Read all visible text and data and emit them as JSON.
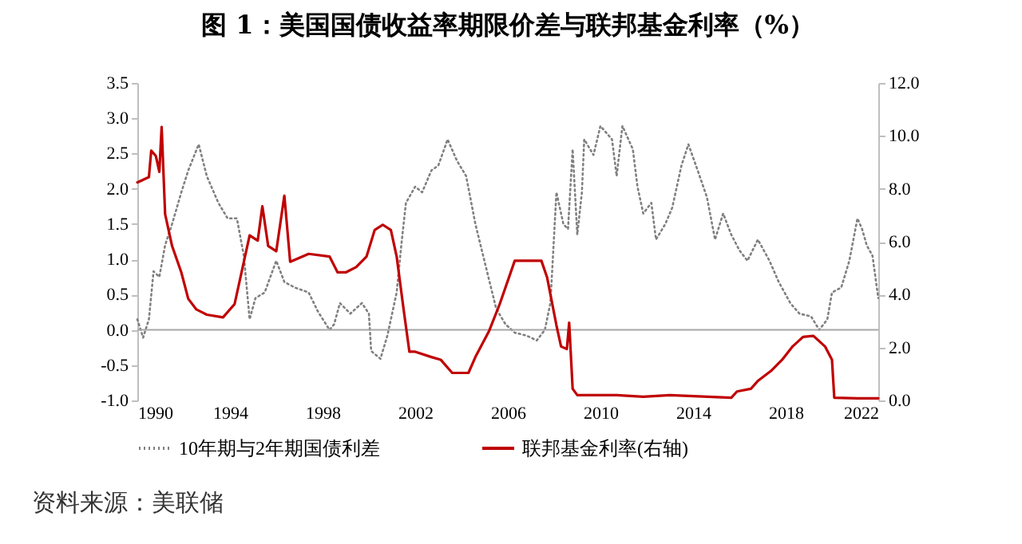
{
  "chart_data": {
    "type": "line",
    "title": "图 1：美国国债收益率期限价差与联邦基金利率（%）",
    "annotations": [
      "资料来源：美联储"
    ],
    "xlim": [
      1990,
      2022
    ],
    "xticks": [
      1990,
      1994,
      1998,
      2002,
      2006,
      2010,
      2014,
      2018,
      2022
    ],
    "ylim": [
      -1.0,
      3.5
    ],
    "yticks": [
      {
        "value": -1,
        "label": "-1.0"
      },
      {
        "value": -0.5,
        "label": "-0.5"
      },
      {
        "value": 0,
        "label": "0.0"
      },
      {
        "value": 0.5,
        "label": "0.5"
      },
      {
        "value": 1,
        "label": "1.0"
      },
      {
        "value": 1.5,
        "label": "1.5"
      },
      {
        "value": 2,
        "label": "2.0"
      },
      {
        "value": 2.5,
        "label": "2.5"
      },
      {
        "value": 3,
        "label": "3.0"
      },
      {
        "value": 3.5,
        "label": "3.5"
      }
    ],
    "y2lim": [
      0,
      12
    ],
    "y2ticks": [
      {
        "value": 0,
        "label": "0.0"
      },
      {
        "value": 2,
        "label": "2.0"
      },
      {
        "value": 4,
        "label": "4.0"
      },
      {
        "value": 6,
        "label": "6.0"
      },
      {
        "value": 8,
        "label": "8.0"
      },
      {
        "value": 10,
        "label": "10.0"
      },
      {
        "value": 12,
        "label": "12.0"
      }
    ],
    "legend": "bottom",
    "ref_lines": [
      {
        "axis": "y",
        "value": 0,
        "color": "#a6a6a6"
      }
    ],
    "series": [
      {
        "name": "10年期与2年期国债利差",
        "color": "#808080",
        "line_style": "dotted",
        "x": [
          1990.0,
          1990.25,
          1990.5,
          1990.7,
          1990.95,
          1991.2,
          1991.5,
          1991.9,
          1992.2,
          1992.65,
          1993.0,
          1993.5,
          1993.9,
          1994.3,
          1994.6,
          1994.85,
          1995.1,
          1995.5,
          1996.0,
          1996.35,
          1996.8,
          1997.4,
          1997.8,
          1998.3,
          1998.5,
          1998.75,
          1999.2,
          1999.7,
          2000.0,
          2000.1,
          2000.5,
          2000.8,
          2001.2,
          2001.4,
          2001.6,
          2002.0,
          2002.3,
          2002.7,
          2003.0,
          2003.4,
          2003.8,
          2004.2,
          2004.6,
          2005.1,
          2005.5,
          2005.9,
          2006.3,
          2006.8,
          2007.25,
          2007.6,
          2007.84,
          2008.1,
          2008.4,
          2008.6,
          2008.8,
          2009.0,
          2009.2,
          2009.3,
          2009.7,
          2010.0,
          2010.5,
          2010.7,
          2010.95,
          2011.4,
          2011.6,
          2011.85,
          2012.2,
          2012.4,
          2012.8,
          2013.1,
          2013.5,
          2013.8,
          2014.2,
          2014.6,
          2014.95,
          2015.3,
          2015.65,
          2016.0,
          2016.35,
          2016.8,
          2017.3,
          2017.7,
          2018.2,
          2018.6,
          2019.1,
          2019.45,
          2019.8,
          2020.0,
          2020.4,
          2020.75,
          2021.1,
          2021.3,
          2021.5,
          2021.75,
          2022.0
        ],
        "values": [
          0.15,
          -0.11,
          0.15,
          0.83,
          0.75,
          1.2,
          1.5,
          1.95,
          2.26,
          2.63,
          2.18,
          1.8,
          1.58,
          1.58,
          1.05,
          0.15,
          0.45,
          0.53,
          0.98,
          0.68,
          0.6,
          0.53,
          0.26,
          0.0,
          0.08,
          0.38,
          0.23,
          0.38,
          0.23,
          -0.3,
          -0.41,
          -0.08,
          0.53,
          1.2,
          1.8,
          2.03,
          1.95,
          2.26,
          2.33,
          2.7,
          2.4,
          2.18,
          1.5,
          0.83,
          0.3,
          0.08,
          -0.04,
          -0.08,
          -0.15,
          0.0,
          0.38,
          1.95,
          1.5,
          1.43,
          2.56,
          1.35,
          1.95,
          2.7,
          2.48,
          2.89,
          2.7,
          2.18,
          2.89,
          2.56,
          2.03,
          1.65,
          1.8,
          1.28,
          1.5,
          1.73,
          2.33,
          2.63,
          2.26,
          1.88,
          1.28,
          1.65,
          1.35,
          1.13,
          0.98,
          1.28,
          0.98,
          0.68,
          0.38,
          0.23,
          0.19,
          0.0,
          0.15,
          0.53,
          0.6,
          0.98,
          1.58,
          1.43,
          1.2,
          1.05,
          0.45
        ]
      },
      {
        "name": "联邦基金利率(右轴)",
        "color": "#c00000",
        "line_style": "solid",
        "axis": "y2",
        "x": [
          1990.0,
          1990.5,
          1990.6,
          1990.8,
          1990.95,
          1991.05,
          1991.2,
          1991.5,
          1991.9,
          1992.2,
          1992.55,
          1993.0,
          1993.7,
          1994.2,
          1994.5,
          1994.85,
          1995.2,
          1995.4,
          1995.65,
          1996.0,
          1996.35,
          1996.6,
          1997.4,
          1998.3,
          1998.65,
          1999.0,
          1999.45,
          1999.9,
          2000.25,
          2000.6,
          2000.95,
          2001.2,
          2001.5,
          2001.75,
          2002.0,
          2002.7,
          2003.1,
          2003.6,
          2004.3,
          2004.6,
          2005.2,
          2005.65,
          2006.3,
          2007.45,
          2007.7,
          2008.1,
          2008.3,
          2008.55,
          2008.65,
          2008.8,
          2009.0,
          2010.7,
          2011.85,
          2013.0,
          2015.65,
          2015.9,
          2016.5,
          2016.8,
          2017.4,
          2017.85,
          2018.3,
          2018.75,
          2019.2,
          2019.7,
          2020.0,
          2020.1,
          2021.1,
          2022.0
        ],
        "values": [
          8.24,
          8.44,
          9.44,
          9.24,
          8.64,
          10.34,
          7.04,
          5.84,
          4.84,
          3.84,
          3.44,
          3.24,
          3.14,
          3.64,
          4.84,
          6.24,
          6.04,
          7.34,
          5.84,
          5.64,
          7.74,
          5.24,
          5.54,
          5.44,
          4.84,
          4.84,
          5.04,
          5.44,
          6.44,
          6.64,
          6.44,
          5.44,
          3.44,
          1.84,
          1.84,
          1.64,
          1.54,
          1.04,
          1.04,
          1.64,
          2.64,
          3.64,
          5.28,
          5.28,
          4.64,
          2.84,
          2.04,
          1.94,
          2.94,
          0.44,
          0.2,
          0.2,
          0.14,
          0.2,
          0.1,
          0.34,
          0.44,
          0.74,
          1.14,
          1.54,
          2.04,
          2.4,
          2.44,
          2.04,
          1.54,
          0.1,
          0.08,
          0.08
        ]
      }
    ]
  }
}
